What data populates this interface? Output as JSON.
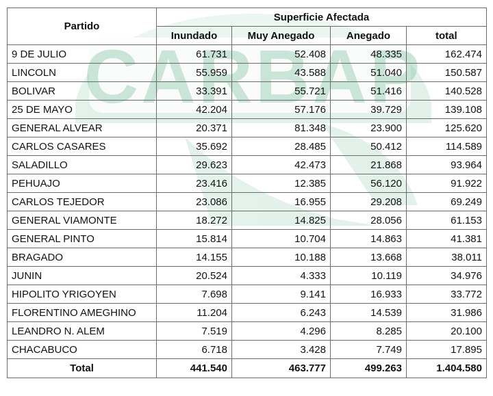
{
  "table": {
    "header": {
      "partido": "Partido",
      "group": "Superficie Afectada",
      "columns": [
        "Inundado",
        "Muy Anegado",
        "Anegado",
        "total"
      ]
    },
    "rows": [
      {
        "partido": "9 DE JULIO",
        "inundado": "61.731",
        "muy_anegado": "52.408",
        "anegado": "48.335",
        "total": "162.474"
      },
      {
        "partido": "LINCOLN",
        "inundado": "55.959",
        "muy_anegado": "43.588",
        "anegado": "51.040",
        "total": "150.587"
      },
      {
        "partido": "BOLIVAR",
        "inundado": "33.391",
        "muy_anegado": "55.721",
        "anegado": "51.416",
        "total": "140.528"
      },
      {
        "partido": "25 DE MAYO",
        "inundado": "42.204",
        "muy_anegado": "57.176",
        "anegado": "39.729",
        "total": "139.108"
      },
      {
        "partido": "GENERAL ALVEAR",
        "inundado": "20.371",
        "muy_anegado": "81.348",
        "anegado": "23.900",
        "total": "125.620"
      },
      {
        "partido": "CARLOS CASARES",
        "inundado": "35.692",
        "muy_anegado": "28.485",
        "anegado": "50.412",
        "total": "114.589"
      },
      {
        "partido": "SALADILLO",
        "inundado": "29.623",
        "muy_anegado": "42.473",
        "anegado": "21.868",
        "total": "93.964"
      },
      {
        "partido": "PEHUAJO",
        "inundado": "23.416",
        "muy_anegado": "12.385",
        "anegado": "56.120",
        "total": "91.922"
      },
      {
        "partido": "CARLOS TEJEDOR",
        "inundado": "23.086",
        "muy_anegado": "16.955",
        "anegado": "29.208",
        "total": "69.249"
      },
      {
        "partido": "GENERAL VIAMONTE",
        "inundado": "18.272",
        "muy_anegado": "14.825",
        "anegado": "28.056",
        "total": "61.153"
      },
      {
        "partido": "GENERAL PINTO",
        "inundado": "15.814",
        "muy_anegado": "10.704",
        "anegado": "14.863",
        "total": "41.381"
      },
      {
        "partido": "BRAGADO",
        "inundado": "14.155",
        "muy_anegado": "10.188",
        "anegado": "13.668",
        "total": "38.011"
      },
      {
        "partido": "JUNIN",
        "inundado": "20.524",
        "muy_anegado": "4.333",
        "anegado": "10.119",
        "total": "34.976"
      },
      {
        "partido": "HIPOLITO YRIGOYEN",
        "inundado": "7.698",
        "muy_anegado": "9.141",
        "anegado": "16.933",
        "total": "33.772"
      },
      {
        "partido": "FLORENTINO AMEGHINO",
        "inundado": "11.204",
        "muy_anegado": "6.243",
        "anegado": "14.539",
        "total": "31.986"
      },
      {
        "partido": "LEANDRO N. ALEM",
        "inundado": "7.519",
        "muy_anegado": "4.296",
        "anegado": "8.285",
        "total": "20.100"
      },
      {
        "partido": "CHACABUCO",
        "inundado": "6.718",
        "muy_anegado": "3.428",
        "anegado": "7.749",
        "total": "17.895"
      }
    ],
    "totals": {
      "label": "Total",
      "inundado": "441.540",
      "muy_anegado": "463.777",
      "anegado": "499.263",
      "total": "1.404.580"
    }
  },
  "watermark": {
    "text": "CARBAP",
    "color": "#8ecaa8"
  }
}
